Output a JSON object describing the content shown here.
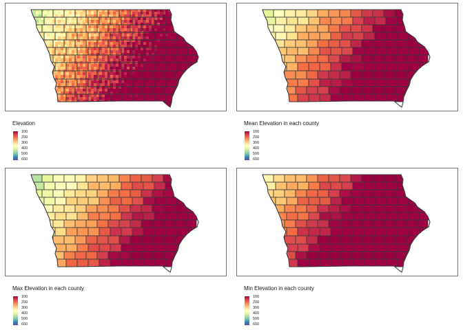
{
  "palette": [
    "#9e0142",
    "#d53e4f",
    "#f46d43",
    "#fdae61",
    "#fee08b",
    "#ffffbf",
    "#e6f598",
    "#abdda4",
    "#66c2a5",
    "#3288bd",
    "#5e4fa2"
  ],
  "border_color": "#3a3a3a",
  "panels": [
    {
      "id": "elevation",
      "title": "Elevation",
      "fill_style": "raster",
      "legend_ticks": [
        "100",
        "200",
        "300",
        "400",
        "500",
        "600"
      ]
    },
    {
      "id": "mean",
      "title": "Mean Elevation in each county",
      "fill_style": "county",
      "legend_ticks": [
        "100",
        "200",
        "300",
        "400",
        "500",
        "600"
      ]
    },
    {
      "id": "max",
      "title": "Max Elevation in each county",
      "fill_style": "county",
      "legend_ticks": [
        "100",
        "200",
        "300",
        "400",
        "500",
        "600"
      ]
    },
    {
      "id": "min",
      "title": "Min Elevation in each county",
      "fill_style": "county",
      "legend_ticks": [
        "100",
        "200",
        "300",
        "400",
        "500",
        "600"
      ]
    }
  ]
}
